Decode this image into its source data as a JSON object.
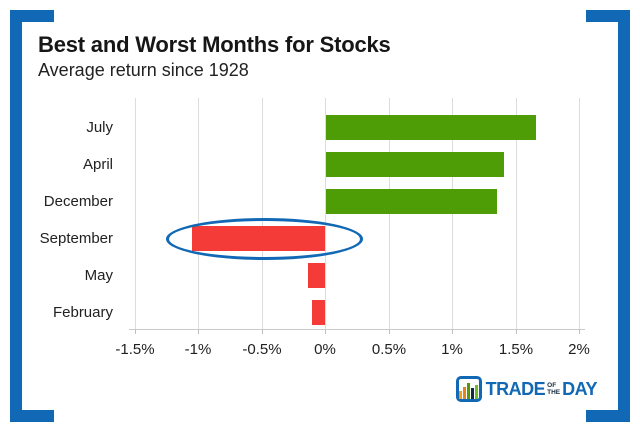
{
  "header": {
    "title": "Best and Worst Months for Stocks",
    "subtitle": "Average return since 1928"
  },
  "chart_data": {
    "type": "bar",
    "orientation": "horizontal",
    "title": "Best and Worst Months for Stocks",
    "subtitle": "Average return since 1928",
    "categories": [
      "July",
      "April",
      "December",
      "September",
      "May",
      "February"
    ],
    "values": [
      1.65,
      1.4,
      1.35,
      -1.05,
      -0.13,
      -0.1
    ],
    "unit": "%",
    "positive_color": "#4E9D06",
    "negative_color": "#F43B38",
    "xlim": [
      -1.5,
      2
    ],
    "x_ticks": [
      -1.5,
      -1,
      -0.5,
      0,
      0.5,
      1,
      1.5,
      2
    ],
    "x_tick_labels": [
      "-1.5%",
      "-1%",
      "-0.5%",
      "0%",
      "0.5%",
      "1%",
      "1.5%",
      "2%"
    ],
    "grid": true,
    "legend": false,
    "highlight": {
      "category": "September",
      "shape": "ellipse",
      "color": "#1168B4"
    }
  },
  "logo": {
    "brand_part1": "TRADE",
    "brand_part2_line1": "OF",
    "brand_part2_line2": "THE",
    "brand_part3": "DAY",
    "icon": "bar-chart-icon",
    "blue": "#1168B4"
  },
  "frame": {
    "color": "#1168B4"
  }
}
